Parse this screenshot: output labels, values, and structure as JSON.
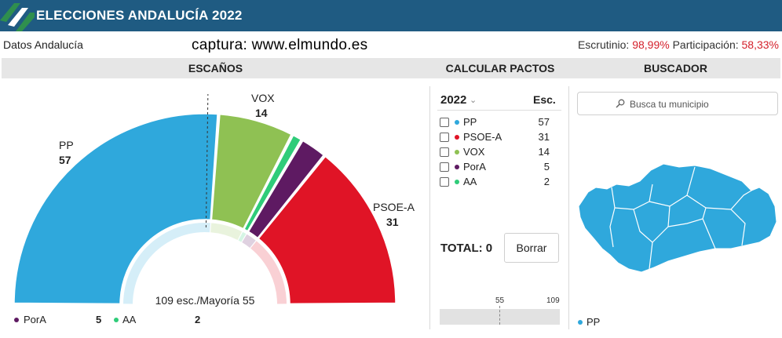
{
  "header": {
    "title": "ELECCIONES ANDALUCÍA 2022",
    "logo_colors": [
      "#1f5b82",
      "#2f8f4e",
      "#ffffff"
    ]
  },
  "subheader": {
    "left": "Datos Andalucía",
    "watermark": "captura: www.elmundo.es",
    "escrutinio_label": "Escrutinio:",
    "escrutinio_value": "98,99%",
    "participacion_label": "Participación:",
    "participacion_value": "58,33%"
  },
  "sections": {
    "seats": "ESCAÑOS",
    "pacts": "CALCULAR PACTOS",
    "search": "BUSCADOR"
  },
  "colors": {
    "PP": "#2fa8dc",
    "PSOE-A": "#e01426",
    "VOX": "#8fc153",
    "PorA": "#5e1a62",
    "AA": "#2fcc79",
    "accent_red": "#d4202b",
    "header_bg": "#1f5b82"
  },
  "chart_data": {
    "type": "pie",
    "variant": "half-donut (hemicycle)",
    "total_seats": 109,
    "majority": 55,
    "center_label": "109 esc./Mayoría 55",
    "slices": [
      {
        "name": "PP",
        "value": 57
      },
      {
        "name": "VOX",
        "value": 14
      },
      {
        "name": "AA",
        "value": 2
      },
      {
        "name": "PorA",
        "value": 5
      },
      {
        "name": "PSOE-A",
        "value": 31
      }
    ],
    "direct_labels": [
      {
        "name": "PP",
        "value": "57"
      },
      {
        "name": "VOX",
        "value": "14"
      },
      {
        "name": "PSOE-A",
        "value": "31"
      }
    ],
    "legend_below": [
      {
        "name": "PorA",
        "value": "5"
      },
      {
        "name": "AA",
        "value": "2"
      }
    ]
  },
  "pacts": {
    "year": "2022",
    "esc_header": "Esc.",
    "rows": [
      {
        "name": "PP",
        "seats": "57",
        "checked": false
      },
      {
        "name": "PSOE-A",
        "seats": "31",
        "checked": false
      },
      {
        "name": "VOX",
        "seats": "14",
        "checked": false
      },
      {
        "name": "PorA",
        "seats": "5",
        "checked": false
      },
      {
        "name": "AA",
        "seats": "2",
        "checked": false
      }
    ],
    "total_label": "TOTAL: 0",
    "total_value": 0,
    "clear_button": "Borrar",
    "scale_majority": "55",
    "scale_total": "109"
  },
  "search": {
    "placeholder": "Busca tu municipio",
    "map_winner_color": "#2fa8dc",
    "map_legend": "PP"
  }
}
